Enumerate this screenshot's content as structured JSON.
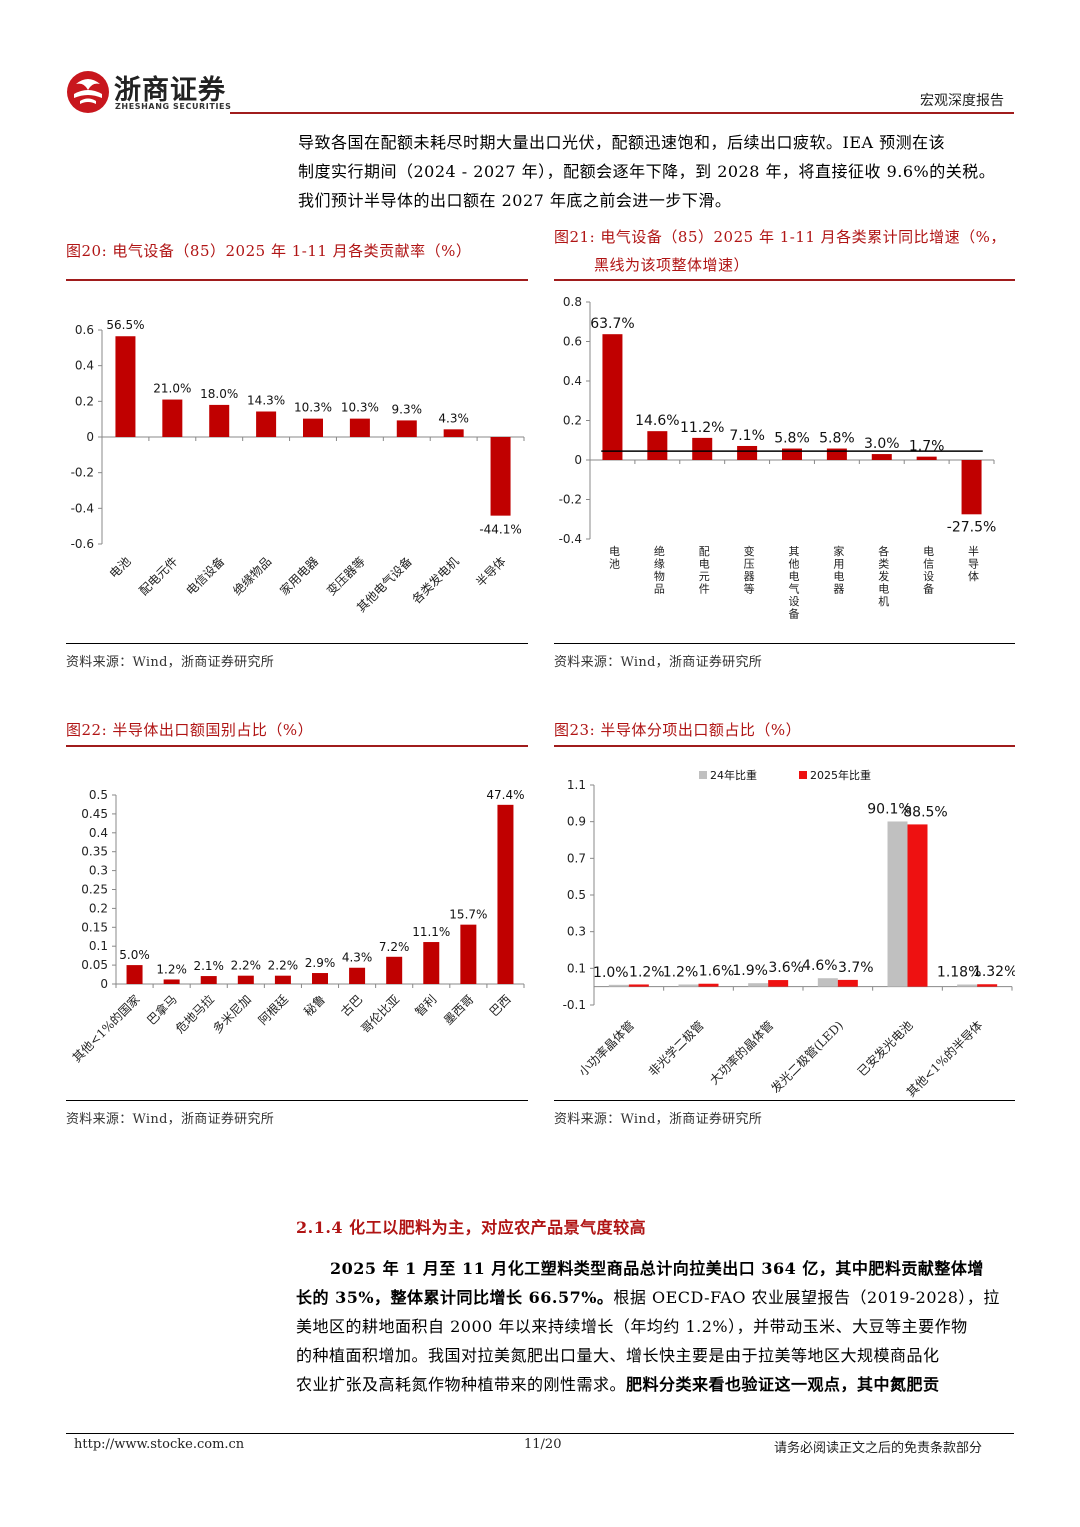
{
  "header": {
    "brand_cn": "浙商证券",
    "brand_en": "ZHESHANG SECURITIES",
    "report_type": "宏观深度报告"
  },
  "intro_lines": [
    "导致各国在配额未耗尽时期大量出口光伏，配额迅速饱和，后续出口疲软。IEA 预测在该",
    "制度实行期间（2024 - 2027 年），配额会逐年下降，到 2028 年，将直接征收 9.6%的关税。",
    "我们预计半导体的出口额在 2027 年底之前会进一步下滑。"
  ],
  "figures": {
    "fig20": {
      "title": "图20:  电气设备（85）2025 年 1-11 月各类贡献率（%）",
      "source": "资料来源：Wind，浙商证券研究所"
    },
    "fig21": {
      "title_line1": "图21:  电气设备（85）2025 年 1-11 月各类累计同比增速（%，",
      "title_line2": "黑线为该项整体增速）",
      "source": "资料来源：Wind，浙商证券研究所"
    },
    "fig22": {
      "title": "图22:  半导体出口额国别占比（%）",
      "source": "资料来源：Wind，浙商证券研究所"
    },
    "fig23": {
      "title": "图23:  半导体分项出口额占比（%）",
      "source": "资料来源：Wind，浙商证券研究所"
    }
  },
  "chart_data": [
    {
      "id": "fig20",
      "type": "bar",
      "title": "电气设备（85）2025 年 1-11 月各类贡献率（%）",
      "categories": [
        "电池",
        "配电元件",
        "电信设备",
        "绝缘物品",
        "家用电器",
        "变压器等",
        "其他电气设备",
        "各类发电机",
        "半导体"
      ],
      "values": [
        0.565,
        0.21,
        0.18,
        0.143,
        0.103,
        0.103,
        0.093,
        0.043,
        -0.441
      ],
      "labels": [
        "56.5%",
        "21.0%",
        "18.0%",
        "14.3%",
        "10.3%",
        "10.3%",
        "9.3%",
        "4.3%",
        "-44.1%"
      ],
      "yticks": [
        "0.6",
        "0.4",
        "0.2",
        "0",
        "-0.2",
        "-0.4",
        "-0.6"
      ],
      "ylim": [
        -0.6,
        0.6
      ],
      "color": "#c00000"
    },
    {
      "id": "fig21",
      "type": "bar",
      "title": "电气设备（85）2025 年 1-11 月各类累计同比增速（%，黑线为该项整体增速）",
      "categories": [
        "电池",
        "绝缘物品",
        "配电元件",
        "变压器等",
        "其他电气设备",
        "家用电器",
        "各类发电机",
        "电信设备",
        "半导体"
      ],
      "values": [
        0.637,
        0.146,
        0.112,
        0.071,
        0.058,
        0.058,
        0.03,
        0.017,
        -0.275
      ],
      "labels": [
        "63.7%",
        "14.6%",
        "11.2%",
        "7.1%",
        "5.8%",
        "5.8%",
        "3.0%",
        "1.7%",
        "-27.5%"
      ],
      "reference_line": 0.045,
      "yticks": [
        "0.8",
        "0.6",
        "0.4",
        "0.2",
        "0",
        "-0.2",
        "-0.4"
      ],
      "ylim": [
        -0.4,
        0.8
      ],
      "color": "#c00000"
    },
    {
      "id": "fig22",
      "type": "bar",
      "title": "半导体出口额国别占比（%）",
      "categories": [
        "其他<1%的国家",
        "巴拿马",
        "危地马拉",
        "多米尼加",
        "阿根廷",
        "秘鲁",
        "古巴",
        "哥伦比亚",
        "智利",
        "墨西哥",
        "巴西"
      ],
      "values": [
        0.05,
        0.012,
        0.021,
        0.022,
        0.022,
        0.029,
        0.043,
        0.072,
        0.111,
        0.157,
        0.474
      ],
      "labels": [
        "5.0%",
        "1.2%",
        "2.1%",
        "2.2%",
        "2.2%",
        "2.9%",
        "4.3%",
        "7.2%",
        "11.1%",
        "15.7%",
        "47.4%"
      ],
      "yticks": [
        "0.5",
        "0.45",
        "0.4",
        "0.35",
        "0.3",
        "0.25",
        "0.2",
        "0.15",
        "0.1",
        "0.05",
        "0"
      ],
      "ylim": [
        0,
        0.5
      ],
      "color": "#c00000"
    },
    {
      "id": "fig23",
      "type": "bar",
      "title": "半导体分项出口额占比（%）",
      "categories": [
        "小功率晶体管",
        "非光学二极管",
        "大功率的晶体管",
        "发光二极管(LED)",
        "已安发光电池",
        "其他<1%的半导体"
      ],
      "series": [
        {
          "name": "24年比重",
          "values": [
            0.01,
            0.012,
            0.019,
            0.046,
            0.901,
            0.0118
          ],
          "labels": [
            "1.0%",
            "1.2%",
            "1.9%",
            "4.6%",
            "90.1%",
            "1.18%"
          ],
          "color": "#c0c0c0"
        },
        {
          "name": "2025年比重",
          "values": [
            0.012,
            0.016,
            0.036,
            0.037,
            0.885,
            0.0132
          ],
          "labels": [
            "1.2%",
            "1.6%",
            "3.6%",
            "3.7%",
            "88.5%",
            "1.32%"
          ],
          "color": "#ee1111"
        }
      ],
      "yticks": [
        "1.1",
        "0.9",
        "0.7",
        "0.5",
        "0.3",
        "0.1",
        "-0.1"
      ],
      "ylim": [
        -0.1,
        1.1
      ],
      "legend": "top-center"
    }
  ],
  "section": {
    "heading": "2.1.4 化工以肥料为主，对应农产品景气度较高",
    "p_line1_b1": "2025 年 1 月至 11 月化工塑料类型商品总计向拉美出口 364 亿，其中肥料贡献整体增",
    "p_line2_b": "长的 35%，整体累计同比增长 66.57%。",
    "p_line2_n": "根据 OECD-FAO 农业展望报告（2019-2028），拉",
    "p_line3": "美地区的耕地面积自 2000 年以来持续增长（年均约 1.2%），并带动玉米、大豆等主要作物",
    "p_line4": "的种植面积增加。我国对拉美氮肥出口量大、增长快主要是由于拉美等地区大规模商品化",
    "p_line5_n": "农业扩张及高耗氮作物种植带来的刚性需求。",
    "p_line5_b": "肥料分类来看也验证这一观点，其中氮肥贡"
  },
  "footer": {
    "url": "http://www.stocke.com.cn",
    "page": "11/20",
    "disclaimer": "请务必阅读正文之后的免责条款部分"
  }
}
